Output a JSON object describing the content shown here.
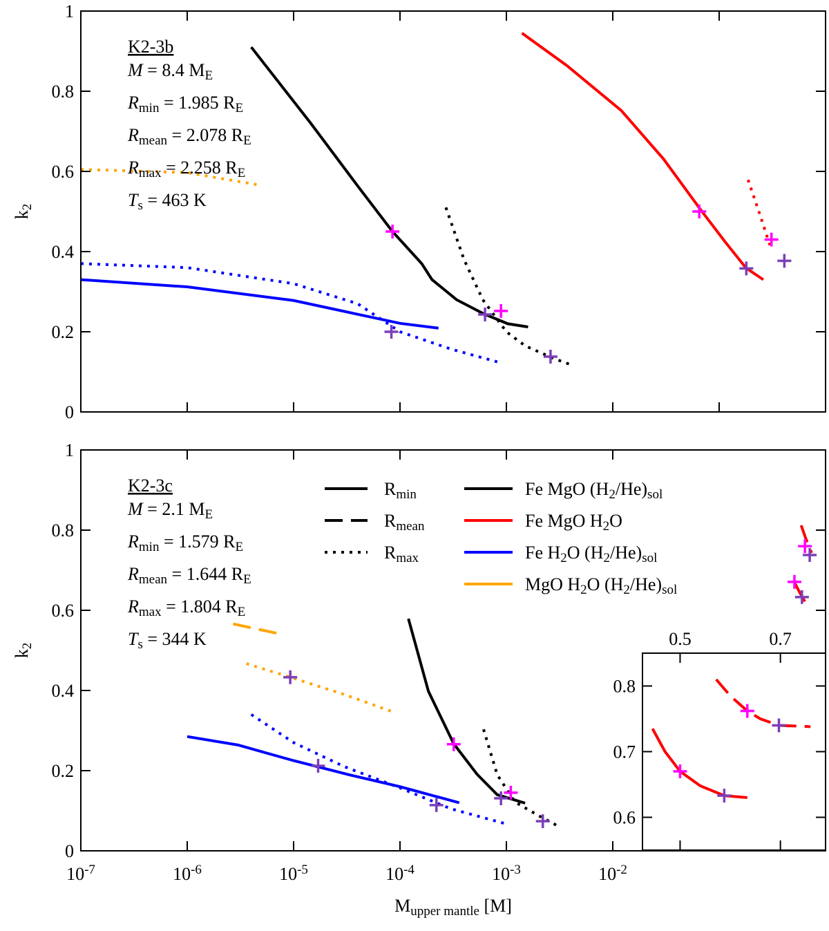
{
  "chart_data": [
    {
      "type": "line",
      "xscale": "log",
      "xlim": [
        1e-07,
        1
      ],
      "ylim": [
        0,
        1
      ],
      "xticks": [
        1e-07,
        1e-06,
        1e-05,
        0.0001,
        0.001,
        0.01,
        0.1
      ],
      "xtick_labels": false,
      "yticks": [
        0,
        0.2,
        0.4,
        0.6,
        0.8,
        1
      ],
      "ylabel": [
        [
          "k",
          "n"
        ],
        [
          "2",
          "s"
        ]
      ],
      "annotation": {
        "title": "K2-3b",
        "lines": [
          [
            [
              "M",
              "i"
            ],
            [
              " = 8.4 M",
              "n"
            ],
            [
              "E",
              "s"
            ]
          ],
          [
            [
              "R",
              "i"
            ],
            [
              "min",
              "s"
            ],
            [
              " = 1.985 R",
              "n"
            ],
            [
              "E",
              "s"
            ]
          ],
          [
            [
              "R",
              "i"
            ],
            [
              "mean",
              "s"
            ],
            [
              " = 2.078 R",
              "n"
            ],
            [
              "E",
              "s"
            ]
          ],
          [
            [
              "R",
              "i"
            ],
            [
              "max",
              "s"
            ],
            [
              " = 2.258 R",
              "n"
            ],
            [
              "E",
              "s"
            ]
          ],
          [
            [
              "T",
              "i"
            ],
            [
              "s",
              "s"
            ],
            [
              " = 463 K",
              "n"
            ]
          ]
        ]
      },
      "series": [
        {
          "color": "#000000",
          "dash": "solid",
          "x": [
            4e-06,
            1.45e-05,
            4.1e-05,
            8.5e-05,
            0.00016,
            0.0002,
            0.00034,
            0.00061,
            0.00103,
            0.0016
          ],
          "values": [
            0.91,
            0.72,
            0.56,
            0.45,
            0.37,
            0.33,
            0.28,
            0.245,
            0.22,
            0.212
          ]
        },
        {
          "color": "#000000",
          "dash": "dotted",
          "x": [
            0.00027,
            0.0004,
            0.0006,
            0.001,
            0.0015,
            0.0027,
            0.0043
          ],
          "values": [
            0.51,
            0.38,
            0.28,
            0.2,
            0.165,
            0.135,
            0.115
          ]
        },
        {
          "color": "#ff0000",
          "dash": "solid",
          "x": [
            0.0014,
            0.0037,
            0.012,
            0.03,
            0.068,
            0.114,
            0.179,
            0.26
          ],
          "values": [
            0.945,
            0.864,
            0.752,
            0.631,
            0.502,
            0.424,
            0.359,
            0.33
          ]
        },
        {
          "color": "#ff0000",
          "dash": "dotted",
          "x": [
            0.187,
            0.241,
            0.3
          ],
          "values": [
            0.579,
            0.493,
            0.416
          ]
        },
        {
          "color": "#0000ff",
          "dash": "solid",
          "x": [
            1e-07,
            1e-06,
            1e-05,
            4.1e-05,
            0.0001,
            0.00023
          ],
          "values": [
            0.33,
            0.312,
            0.278,
            0.243,
            0.221,
            0.209
          ]
        },
        {
          "color": "#0000ff",
          "dash": "dotted",
          "x": [
            1e-07,
            1e-06,
            1e-05,
            4e-05,
            0.0001,
            0.0003,
            0.0009
          ],
          "values": [
            0.37,
            0.36,
            0.32,
            0.27,
            0.2,
            0.157,
            0.122
          ]
        },
        {
          "color": "#ffa500",
          "dash": "dotted",
          "x": [
            1e-07,
            1e-06,
            5e-06
          ],
          "values": [
            0.605,
            0.597,
            0.565
          ]
        }
      ],
      "markers": [
        {
          "color": "#ff00ff",
          "x": [
            8.5e-05,
            0.00089,
            0.065,
            0.31
          ],
          "values": [
            0.45,
            0.252,
            0.5,
            0.43
          ]
        },
        {
          "color": "#7b3fb8",
          "x": [
            8.3e-05,
            0.00063,
            0.0026,
            0.18,
            0.41
          ],
          "values": [
            0.2,
            0.243,
            0.138,
            0.358,
            0.377
          ]
        }
      ]
    },
    {
      "type": "line",
      "xscale": "log",
      "xlim": [
        1e-07,
        1
      ],
      "ylim": [
        0,
        1
      ],
      "xticks": [
        {
          "value": 1e-07,
          "label": "10",
          "exponent": "-7"
        },
        {
          "value": 1e-06,
          "label": "10",
          "exponent": "-6"
        },
        {
          "value": 1e-05,
          "label": "10",
          "exponent": "-5"
        },
        {
          "value": 0.0001,
          "label": "10",
          "exponent": "-4"
        },
        {
          "value": 0.001,
          "label": "10",
          "exponent": "-3"
        },
        {
          "value": 0.01,
          "label": "10",
          "exponent": "-2"
        }
      ],
      "xtick_labels": true,
      "yticks": [
        0,
        0.2,
        0.4,
        0.6,
        0.8,
        1
      ],
      "ylabel": [
        [
          "k",
          "n"
        ],
        [
          "2",
          "s"
        ]
      ],
      "xlabel": [
        [
          "M",
          "n"
        ],
        [
          "upper mantle",
          "s"
        ],
        [
          " [M]",
          "n"
        ]
      ],
      "annotation": {
        "title": "K2-3c",
        "lines": [
          [
            [
              "M",
              "i"
            ],
            [
              " = 2.1 M",
              "n"
            ],
            [
              "E",
              "s"
            ]
          ],
          [
            [
              "R",
              "i"
            ],
            [
              "min",
              "s"
            ],
            [
              " = 1.579 R",
              "n"
            ],
            [
              "E",
              "s"
            ]
          ],
          [
            [
              "R",
              "i"
            ],
            [
              "mean",
              "s"
            ],
            [
              " = 1.644 R",
              "n"
            ],
            [
              "E",
              "s"
            ]
          ],
          [
            [
              "R",
              "i"
            ],
            [
              "max",
              "s"
            ],
            [
              " = 1.804 R",
              "n"
            ],
            [
              "E",
              "s"
            ]
          ],
          [
            [
              "T",
              "i"
            ],
            [
              "s",
              "s"
            ],
            [
              " = 344 K",
              "n"
            ]
          ]
        ]
      },
      "legend": {
        "styles": [
          {
            "label": [
              [
                "R",
                "n"
              ],
              [
                "min",
                "s"
              ]
            ],
            "dash": "solid"
          },
          {
            "label": [
              [
                "R",
                "n"
              ],
              [
                "mean",
                "s"
              ]
            ],
            "dash": "dashed"
          },
          {
            "label": [
              [
                "R",
                "n"
              ],
              [
                "max",
                "s"
              ]
            ],
            "dash": "dotted"
          }
        ],
        "colors": [
          {
            "label": [
              [
                "Fe MgO (H",
                "n"
              ],
              [
                "2",
                "s"
              ],
              [
                "/He)",
                "n"
              ],
              [
                "sol",
                "s"
              ]
            ],
            "color": "#000000"
          },
          {
            "label": [
              [
                "Fe MgO H",
                "n"
              ],
              [
                "2",
                "s"
              ],
              [
                "O",
                "n"
              ]
            ],
            "color": "#ff0000"
          },
          {
            "label": [
              [
                "Fe H",
                "n"
              ],
              [
                "2",
                "s"
              ],
              [
                "O (H",
                "n"
              ],
              [
                "2",
                "s"
              ],
              [
                "/He)",
                "n"
              ],
              [
                "sol",
                "s"
              ]
            ],
            "color": "#0000ff"
          },
          {
            "label": [
              [
                "MgO H",
                "n"
              ],
              [
                "2",
                "s"
              ],
              [
                "O (H",
                "n"
              ],
              [
                "2",
                "s"
              ],
              [
                "/He)",
                "n"
              ],
              [
                "sol",
                "s"
              ]
            ],
            "color": "#ffa500"
          }
        ]
      },
      "series": [
        {
          "color": "#000000",
          "dash": "solid",
          "x": [
            0.00012,
            0.000185,
            0.00032,
            0.00053,
            0.00082,
            0.0015
          ],
          "values": [
            0.579,
            0.398,
            0.267,
            0.191,
            0.14,
            0.119
          ]
        },
        {
          "color": "#000000",
          "dash": "dotted",
          "x": [
            0.00061,
            0.00082,
            0.0012,
            0.002,
            0.0032
          ],
          "values": [
            0.303,
            0.19,
            0.122,
            0.088,
            0.059
          ]
        },
        {
          "color": "#0000ff",
          "dash": "solid",
          "x": [
            1e-06,
            3e-06,
            1e-05,
            3.3e-05,
            0.0001,
            0.00036
          ],
          "values": [
            0.285,
            0.264,
            0.225,
            0.19,
            0.16,
            0.12
          ]
        },
        {
          "color": "#0000ff",
          "dash": "dotted",
          "x": [
            4e-06,
            1e-05,
            3e-05,
            0.0001,
            0.0003,
            0.001
          ],
          "values": [
            0.34,
            0.27,
            0.21,
            0.157,
            0.105,
            0.067
          ]
        },
        {
          "color": "#ffa500",
          "dash": "dotted",
          "x": [
            3.6e-06,
            9.3e-06,
            3e-05,
            8.5e-05
          ],
          "values": [
            0.467,
            0.433,
            0.39,
            0.347
          ]
        },
        {
          "color": "#ffa500",
          "dash": "dashed",
          "x": [
            2.7e-06,
            6.9e-06
          ],
          "values": [
            0.566,
            0.543
          ]
        },
        {
          "color": "#ff0000",
          "dash": "dashed",
          "x": [
            0.59,
            0.65,
            0.74
          ],
          "values": [
            0.812,
            0.78,
            0.743
          ]
        },
        {
          "color": "#ff0000",
          "dash": "solid",
          "x": [
            0.5,
            0.57,
            0.64
          ],
          "values": [
            0.674,
            0.645,
            0.622
          ]
        }
      ],
      "markers": [
        {
          "color": "#ff00ff",
          "x": [
            0.00032,
            0.0011,
            0.51,
            0.64
          ],
          "values": [
            0.266,
            0.145,
            0.671,
            0.76
          ]
        },
        {
          "color": "#7b3fb8",
          "x": [
            9.3e-06,
            1.7e-05,
            0.00022,
            0.00089,
            0.0022,
            0.6,
            0.71
          ],
          "values": [
            0.433,
            0.212,
            0.114,
            0.131,
            0.074,
            0.633,
            0.738
          ]
        }
      ]
    },
    {
      "type": "line",
      "xscale": "linear",
      "xlim": [
        0.425,
        0.79
      ],
      "ylim": [
        0.55,
        0.85
      ],
      "xticks": [
        0.5,
        0.7
      ],
      "xtick_labels": true,
      "xtick_side": "top",
      "yticks": [
        0.6,
        0.7,
        0.8
      ],
      "series": [
        {
          "color": "#ff0000",
          "dash": "solid",
          "x": [
            0.445,
            0.47,
            0.5,
            0.54,
            0.588,
            0.634
          ],
          "values": [
            0.735,
            0.7,
            0.67,
            0.648,
            0.633,
            0.63
          ]
        },
        {
          "color": "#ff0000",
          "dash": "dashed",
          "x": [
            0.572,
            0.6,
            0.634,
            0.66,
            0.697,
            0.76
          ],
          "values": [
            0.81,
            0.785,
            0.762,
            0.75,
            0.74,
            0.738
          ]
        }
      ],
      "markers": [
        {
          "color": "#ff00ff",
          "x": [
            0.5,
            0.634
          ],
          "values": [
            0.67,
            0.762
          ]
        },
        {
          "color": "#7b3fb8",
          "x": [
            0.588,
            0.697
          ],
          "values": [
            0.633,
            0.74
          ]
        }
      ]
    }
  ]
}
